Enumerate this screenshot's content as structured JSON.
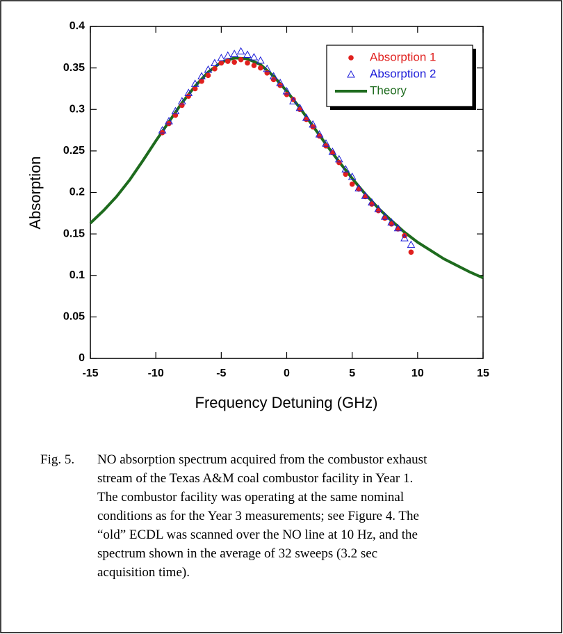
{
  "chart_data": {
    "type": "scatter",
    "xlabel": "Frequency Detuning (GHz)",
    "ylabel": "Absorption",
    "xlim": [
      -15,
      15
    ],
    "xticks": [
      -15,
      -10,
      -5,
      0,
      5,
      10,
      15
    ],
    "ylim": [
      0,
      0.4
    ],
    "yticks": [
      0,
      0.05,
      0.1,
      0.15,
      0.2,
      0.25,
      0.3,
      0.35,
      0.4
    ],
    "grid": false,
    "legend": "upper right",
    "series": [
      {
        "name": "Absorption 1",
        "color": "#e0201e",
        "marker": "circle",
        "x": [
          -9.5,
          -9,
          -8.5,
          -8,
          -7.5,
          -7,
          -6.5,
          -6,
          -5.5,
          -5,
          -4.5,
          -4,
          -3.5,
          -3,
          -2.5,
          -2,
          -1.5,
          -1,
          -0.5,
          0,
          0.5,
          1,
          1.5,
          2,
          2.5,
          3,
          3.5,
          4,
          4.5,
          5,
          5.5,
          6,
          6.5,
          7,
          7.5,
          8,
          8.5,
          9,
          9.5
        ],
        "values": [
          0.272,
          0.283,
          0.293,
          0.305,
          0.316,
          0.325,
          0.334,
          0.341,
          0.349,
          0.356,
          0.358,
          0.357,
          0.36,
          0.356,
          0.353,
          0.35,
          0.344,
          0.336,
          0.329,
          0.318,
          0.312,
          0.3,
          0.288,
          0.279,
          0.268,
          0.256,
          0.248,
          0.236,
          0.222,
          0.21,
          0.204,
          0.195,
          0.186,
          0.178,
          0.169,
          0.162,
          0.156,
          0.148,
          0.128
        ]
      },
      {
        "name": "Absorption 2",
        "color": "#1a1ad8",
        "marker": "triangle",
        "x": [
          -9.5,
          -9,
          -8.5,
          -8,
          -7.5,
          -7,
          -6.5,
          -6,
          -5.5,
          -5,
          -4.5,
          -4,
          -3.5,
          -3,
          -2.5,
          -2,
          -1.5,
          -1,
          -0.5,
          0,
          0.5,
          1,
          1.5,
          2,
          2.5,
          3,
          3.5,
          4,
          4.5,
          5,
          5.5,
          6,
          6.5,
          7,
          7.5,
          8,
          8.5,
          9,
          9.5
        ],
        "values": [
          0.275,
          0.286,
          0.298,
          0.31,
          0.32,
          0.331,
          0.34,
          0.348,
          0.356,
          0.362,
          0.365,
          0.367,
          0.37,
          0.366,
          0.363,
          0.359,
          0.349,
          0.34,
          0.332,
          0.322,
          0.31,
          0.302,
          0.29,
          0.282,
          0.27,
          0.259,
          0.249,
          0.24,
          0.228,
          0.219,
          0.205,
          0.196,
          0.188,
          0.18,
          0.171,
          0.164,
          0.157,
          0.145,
          0.137
        ]
      },
      {
        "name": "Theory",
        "color": "#1e6b1e",
        "marker": "line",
        "x": [
          -15,
          -14,
          -13,
          -12,
          -11,
          -10,
          -9,
          -8,
          -7,
          -6,
          -5,
          -4,
          -3,
          -2,
          -1,
          0,
          1,
          2,
          3,
          4,
          5,
          6,
          7,
          8,
          9,
          10,
          11,
          12,
          13,
          14,
          15
        ],
        "values": [
          0.163,
          0.178,
          0.195,
          0.215,
          0.238,
          0.262,
          0.285,
          0.308,
          0.328,
          0.345,
          0.357,
          0.362,
          0.361,
          0.354,
          0.34,
          0.322,
          0.302,
          0.28,
          0.258,
          0.237,
          0.217,
          0.198,
          0.181,
          0.166,
          0.152,
          0.14,
          0.13,
          0.12,
          0.112,
          0.104,
          0.097
        ]
      }
    ]
  },
  "caption": {
    "label": "Fig. 5.",
    "lines": [
      "NO absorption spectrum acquired from the combustor exhaust",
      "stream of the Texas A&M coal combustor facility in Year 1.",
      "The combustor facility was operating at the same nominal",
      "conditions as for the Year 3 measurements; see Figure 4.  The",
      "“old” ECDL was scanned over the NO line at 10 Hz, and the",
      "spectrum shown in the average of 32 sweeps (3.2 sec",
      "acquisition time)."
    ]
  }
}
